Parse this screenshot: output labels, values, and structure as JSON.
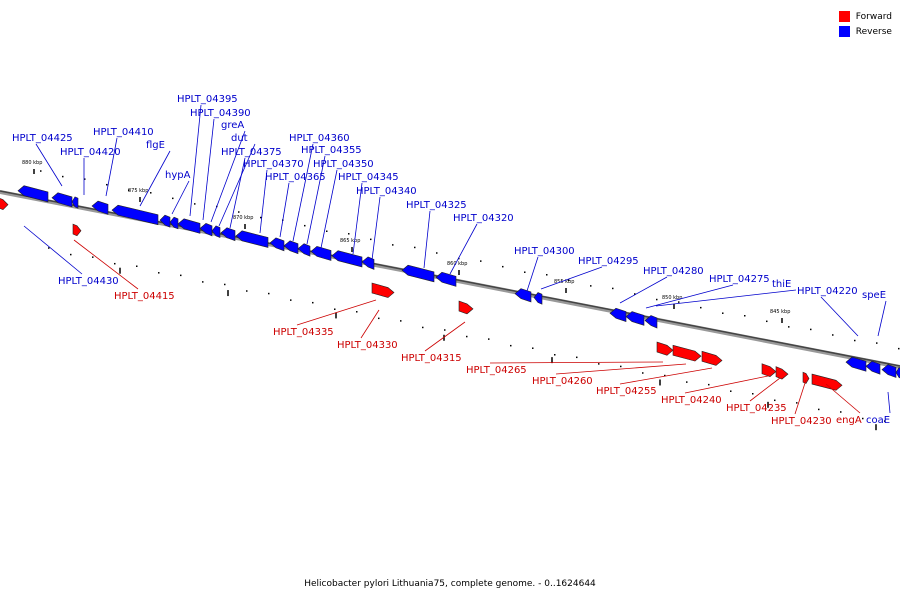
{
  "legend": {
    "forward_label": "Forward",
    "reverse_label": "Reverse",
    "forward_color": "#ff0000",
    "reverse_color": "#0000ff"
  },
  "caption": "Helicobacter pylori Lithuania75, complete genome. - 0..1624644",
  "scale_labels": [
    "880 kbp",
    "875 kbp",
    "870 kbp",
    "865 kbp",
    "860 kbp",
    "855 kbp",
    "850 kbp",
    "845 kbp"
  ],
  "genes": [
    {
      "name": "HPLT_04430",
      "strand": "reverse"
    },
    {
      "name": "HPLT_04425",
      "strand": "reverse"
    },
    {
      "name": "HPLT_04420",
      "strand": "reverse"
    },
    {
      "name": "HPLT_04415",
      "strand": "forward"
    },
    {
      "name": "HPLT_04410",
      "strand": "reverse"
    },
    {
      "name": "flgE",
      "strand": "reverse"
    },
    {
      "name": "hypA",
      "strand": "reverse"
    },
    {
      "name": "HPLT_04395",
      "strand": "reverse"
    },
    {
      "name": "HPLT_04390",
      "strand": "reverse"
    },
    {
      "name": "greA",
      "strand": "reverse"
    },
    {
      "name": "dut",
      "strand": "reverse"
    },
    {
      "name": "HPLT_04375",
      "strand": "reverse"
    },
    {
      "name": "HPLT_04370",
      "strand": "reverse"
    },
    {
      "name": "HPLT_04365",
      "strand": "reverse"
    },
    {
      "name": "HPLT_04360",
      "strand": "reverse"
    },
    {
      "name": "HPLT_04355",
      "strand": "reverse"
    },
    {
      "name": "HPLT_04350",
      "strand": "reverse"
    },
    {
      "name": "HPLT_04345",
      "strand": "reverse"
    },
    {
      "name": "HPLT_04340",
      "strand": "reverse"
    },
    {
      "name": "HPLT_04335",
      "strand": "forward"
    },
    {
      "name": "HPLT_04330",
      "strand": "forward"
    },
    {
      "name": "HPLT_04325",
      "strand": "reverse"
    },
    {
      "name": "HPLT_04320",
      "strand": "reverse"
    },
    {
      "name": "HPLT_04315",
      "strand": "forward"
    },
    {
      "name": "HPLT_04300",
      "strand": "reverse"
    },
    {
      "name": "HPLT_04295",
      "strand": "reverse"
    },
    {
      "name": "HPLT_04280",
      "strand": "reverse"
    },
    {
      "name": "HPLT_04275",
      "strand": "reverse"
    },
    {
      "name": "thiE",
      "strand": "reverse"
    },
    {
      "name": "HPLT_04265",
      "strand": "forward"
    },
    {
      "name": "HPLT_04260",
      "strand": "forward"
    },
    {
      "name": "HPLT_04255",
      "strand": "forward"
    },
    {
      "name": "HPLT_04240",
      "strand": "forward"
    },
    {
      "name": "HPLT_04235",
      "strand": "forward"
    },
    {
      "name": "HPLT_04230",
      "strand": "forward"
    },
    {
      "name": "engA",
      "strand": "forward"
    },
    {
      "name": "HPLT_04220",
      "strand": "reverse"
    },
    {
      "name": "speE",
      "strand": "reverse"
    },
    {
      "name": "coaE",
      "strand": "reverse"
    }
  ]
}
